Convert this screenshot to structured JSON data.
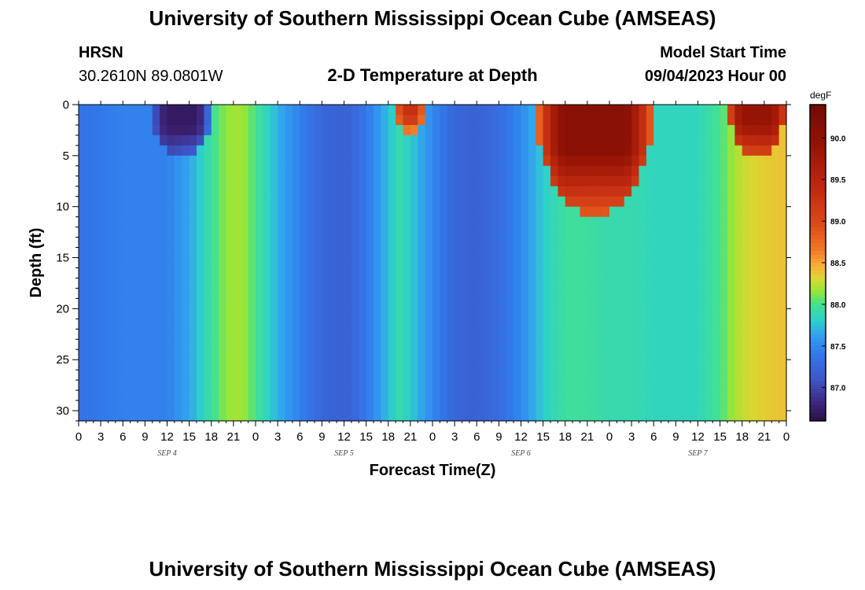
{
  "header": {
    "title": "University of Southern Mississippi Ocean Cube (AMSEAS)",
    "station_name": "HRSN",
    "coordinates": "30.2610N  89.0801W",
    "plot_title": "2-D Temperature at Depth",
    "model_start_label": "Model Start Time",
    "model_start_value": "09/04/2023 Hour 00"
  },
  "footer": {
    "title": "University of Southern Mississippi Ocean Cube (AMSEAS)"
  },
  "chart_data": {
    "type": "heatmap",
    "title": "2-D Temperature at Depth",
    "xlabel": "Forecast Time(Z)",
    "ylabel": "Depth (ft)",
    "x_range_hours": [
      0,
      96
    ],
    "y_range_ft": [
      0,
      31
    ],
    "x_tick_labels": [
      "0",
      "3",
      "6",
      "9",
      "12",
      "15",
      "18",
      "21",
      "0",
      "3",
      "6",
      "9",
      "12",
      "15",
      "18",
      "21",
      "0",
      "3",
      "6",
      "9",
      "12",
      "15",
      "18",
      "21",
      "0",
      "3",
      "6",
      "9",
      "12",
      "15",
      "18",
      "21",
      "0"
    ],
    "y_ticks": [
      0,
      5,
      10,
      15,
      20,
      25,
      30
    ],
    "y_tick_labels": [
      "0",
      "5",
      "10",
      "15",
      "20",
      "25",
      "30"
    ],
    "day_labels": [
      "SEP 4",
      "SEP 5",
      "SEP 6",
      "SEP 7"
    ],
    "colorbar": {
      "unit": "degF",
      "range": [
        86.6,
        90.4
      ],
      "ticks": [
        87.0,
        87.5,
        88.0,
        88.5,
        89.0,
        89.5,
        90.0
      ],
      "tick_labels": [
        "87.0",
        "87.5",
        "88.0",
        "88.5",
        "89.0",
        "89.5",
        "90.0"
      ]
    },
    "bottom_temperature_by_hour": [
      [
        0,
        87.35
      ],
      [
        3,
        87.4
      ],
      [
        6,
        87.45
      ],
      [
        9,
        87.45
      ],
      [
        12,
        87.45
      ],
      [
        15,
        87.65
      ],
      [
        18,
        87.95
      ],
      [
        20,
        88.15
      ],
      [
        22,
        88.2
      ],
      [
        24,
        88.0
      ],
      [
        26,
        87.8
      ],
      [
        28,
        87.6
      ],
      [
        30,
        87.45
      ],
      [
        33,
        87.25
      ],
      [
        36,
        87.2
      ],
      [
        38,
        87.3
      ],
      [
        40,
        87.5
      ],
      [
        42,
        87.75
      ],
      [
        43.5,
        87.9
      ],
      [
        45,
        87.8
      ],
      [
        47,
        87.6
      ],
      [
        49,
        87.4
      ],
      [
        51,
        87.25
      ],
      [
        54,
        87.2
      ],
      [
        57,
        87.3
      ],
      [
        60,
        87.5
      ],
      [
        63,
        87.8
      ],
      [
        66,
        87.95
      ],
      [
        69,
        87.95
      ],
      [
        72,
        87.9
      ],
      [
        75,
        87.9
      ],
      [
        78,
        87.85
      ],
      [
        81,
        87.85
      ],
      [
        84,
        87.85
      ],
      [
        87,
        88.0
      ],
      [
        89,
        88.2
      ],
      [
        91,
        88.3
      ],
      [
        93,
        88.35
      ],
      [
        96,
        88.4
      ]
    ],
    "near_surface_features": [
      {
        "hours": [
          10,
          18
        ],
        "max_depth_ft": 5.5,
        "min_temp_degF": 86.7,
        "kind": "cool pocket"
      },
      {
        "hours": [
          43,
          47
        ],
        "max_depth_ft": 3,
        "peak_temp_degF": 89.3,
        "kind": "warm pocket"
      },
      {
        "hours": [
          62,
          78
        ],
        "max_depth_ft": 11,
        "peak_temp_degF": 90.1,
        "kind": "warm layer"
      },
      {
        "hours": [
          88,
          96
        ],
        "max_depth_ft": 5,
        "peak_temp_degF": 89.9,
        "kind": "warm layer"
      }
    ]
  }
}
